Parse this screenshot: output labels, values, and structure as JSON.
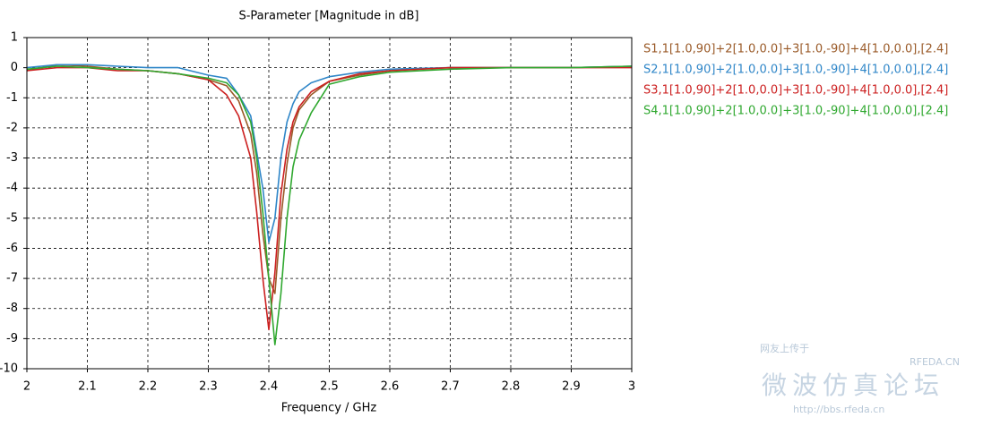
{
  "chart_data": {
    "type": "line",
    "title": "S-Parameter [Magnitude in dB]",
    "x_label": "Frequency / GHz",
    "x": [
      2.0,
      2.05,
      2.1,
      2.15,
      2.2,
      2.25,
      2.3,
      2.33,
      2.35,
      2.37,
      2.38,
      2.39,
      2.4,
      2.41,
      2.42,
      2.43,
      2.44,
      2.45,
      2.47,
      2.5,
      2.55,
      2.6,
      2.7,
      2.8,
      2.9,
      3.0
    ],
    "series": [
      {
        "name": "S1,1[1.0,90]+2[1.0,0.0]+3[1.0,-90]+4[1.0,0.0],[2.4]",
        "color": "#9a5a28",
        "values": [
          -0.1,
          0.1,
          0.05,
          -0.05,
          -0.1,
          -0.2,
          -0.4,
          -0.6,
          -1.1,
          -2.2,
          -3.5,
          -5.5,
          -7,
          -7.5,
          -5,
          -3.2,
          -2,
          -1.4,
          -0.9,
          -0.45,
          -0.25,
          -0.1,
          0,
          0,
          0,
          0.05
        ]
      },
      {
        "name": "S2,1[1.0,90]+2[1.0,0.0]+3[1.0,-90]+4[1.0,0.0],[2.4]",
        "color": "#2f86c8",
        "values": [
          0,
          0.1,
          0.1,
          0.05,
          0,
          0,
          -0.25,
          -0.35,
          -0.9,
          -1.6,
          -2.8,
          -4,
          -5.8,
          -5,
          -3,
          -1.8,
          -1.2,
          -0.8,
          -0.5,
          -0.3,
          -0.15,
          -0.05,
          0,
          0,
          0,
          0.05
        ]
      },
      {
        "name": "S3,1[1.0,90]+2[1.0,0.0]+3[1.0,-90]+4[1.0,0.0],[2.4]",
        "color": "#cc2020",
        "values": [
          -0.1,
          0,
          0,
          -0.1,
          -0.1,
          -0.2,
          -0.4,
          -0.9,
          -1.6,
          -3,
          -4.8,
          -7,
          -8.7,
          -6.8,
          -4.2,
          -2.7,
          -1.8,
          -1.3,
          -0.8,
          -0.45,
          -0.2,
          -0.1,
          0,
          0,
          0,
          0
        ]
      },
      {
        "name": "S4,1[1.0,90]+2[1.0,0.0]+3[1.0,-90]+4[1.0,0.0],[2.4]",
        "color": "#2fa82f",
        "values": [
          -0.05,
          0.05,
          0,
          -0.05,
          -0.1,
          -0.2,
          -0.35,
          -0.5,
          -0.9,
          -1.8,
          -3,
          -4.8,
          -7,
          -9.2,
          -7.5,
          -5,
          -3.3,
          -2.4,
          -1.5,
          -0.55,
          -0.3,
          -0.15,
          -0.05,
          0,
          0,
          0.05
        ]
      }
    ],
    "xlim": [
      2,
      3
    ],
    "xticks": [
      2,
      2.1,
      2.2,
      2.3,
      2.4,
      2.5,
      2.6,
      2.7,
      2.8,
      2.9,
      3
    ],
    "ylim": [
      -10,
      1
    ],
    "yticks": [
      1,
      0,
      -1,
      -2,
      -3,
      -4,
      -5,
      -6,
      -7,
      -8,
      -9,
      -10
    ],
    "grid": true
  },
  "watermark": {
    "uploader": "网友上传于",
    "site": "RFEDA.CN",
    "forum": "微波仿真论坛",
    "url": "http://bbs.rfeda.cn"
  }
}
